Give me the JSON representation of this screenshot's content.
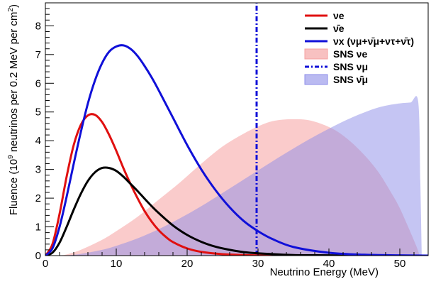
{
  "chart_data": {
    "type": "line",
    "title": "",
    "xlabel": "Neutrino Energy (MeV)",
    "ylabel": "Fluence (10^9 neutrinos per 0.2 MeV per cm^2)",
    "xlim": [
      0,
      54
    ],
    "ylim": [
      0,
      8.8
    ],
    "x_ticks": [
      0,
      10,
      20,
      30,
      40,
      50
    ],
    "y_ticks": [
      0,
      1,
      2,
      3,
      4,
      5,
      6,
      7,
      8
    ],
    "grid": false,
    "legend_position": "top-right",
    "series": [
      {
        "name": "νe",
        "style": "line",
        "color": "#e01010",
        "x": [
          0,
          1,
          2,
          3,
          4,
          5,
          6,
          7,
          8,
          9,
          10,
          11,
          12,
          13,
          14,
          15,
          16,
          17,
          18,
          20,
          22,
          25,
          28,
          30,
          35,
          40,
          45,
          50,
          54
        ],
        "y": [
          0,
          0.4,
          1.45,
          2.75,
          3.85,
          4.55,
          4.88,
          4.9,
          4.65,
          4.2,
          3.65,
          3.05,
          2.5,
          2.0,
          1.55,
          1.18,
          0.88,
          0.65,
          0.47,
          0.25,
          0.13,
          0.05,
          0.02,
          0.01,
          0.0,
          0.0,
          0.0,
          0.0,
          0.0
        ]
      },
      {
        "name": "ν̄e",
        "style": "line",
        "color": "#000000",
        "x": [
          0,
          1,
          2,
          3,
          4,
          5,
          6,
          7,
          8,
          9,
          10,
          11,
          12,
          13,
          14,
          15,
          16,
          18,
          20,
          22,
          24,
          26,
          28,
          30,
          35,
          40,
          45,
          50,
          54
        ],
        "y": [
          0,
          0.1,
          0.45,
          1.0,
          1.6,
          2.15,
          2.6,
          2.9,
          3.05,
          3.05,
          2.95,
          2.75,
          2.5,
          2.25,
          1.98,
          1.72,
          1.48,
          1.05,
          0.72,
          0.48,
          0.31,
          0.2,
          0.12,
          0.08,
          0.02,
          0.01,
          0.0,
          0.0,
          0.0
        ]
      },
      {
        "name": "νx",
        "label_suffix": "(νμ+ν̄μ+ντ+ν̄τ)",
        "style": "line",
        "color": "#1010d8",
        "x": [
          0,
          1,
          2,
          3,
          4,
          5,
          6,
          7,
          8,
          9,
          10,
          11,
          12,
          13,
          14,
          15,
          16,
          18,
          20,
          22,
          24,
          26,
          28,
          30,
          32,
          35,
          40,
          45,
          50,
          54
        ],
        "y": [
          0,
          0.25,
          1.0,
          2.05,
          3.2,
          4.3,
          5.3,
          6.1,
          6.7,
          7.1,
          7.28,
          7.32,
          7.2,
          6.95,
          6.6,
          6.2,
          5.75,
          4.8,
          3.85,
          3.0,
          2.28,
          1.68,
          1.2,
          0.85,
          0.58,
          0.3,
          0.1,
          0.03,
          0.01,
          0.0
        ]
      },
      {
        "name": "SNS νe",
        "style": "filled",
        "color": "#f5a0a0",
        "opacity": 0.55,
        "x": [
          0,
          2,
          3,
          5,
          8,
          10,
          13,
          16,
          19,
          22,
          25,
          28,
          31,
          33,
          35,
          37,
          39,
          41,
          43,
          45,
          47,
          49,
          50,
          51,
          52.3,
          52.8
        ],
        "y": [
          0,
          0.01,
          0.04,
          0.2,
          0.55,
          0.85,
          1.35,
          1.95,
          2.55,
          3.2,
          3.8,
          4.25,
          4.6,
          4.72,
          4.75,
          4.72,
          4.58,
          4.35,
          3.98,
          3.5,
          2.9,
          2.1,
          1.65,
          1.1,
          0.35,
          0.0
        ]
      },
      {
        "name": "SNS νμ",
        "style": "dash-dot-vertical",
        "color": "#1010d8",
        "x": [
          29.8,
          29.8
        ],
        "y": [
          0,
          8.8
        ]
      },
      {
        "name": "SNS ν̄μ",
        "style": "filled",
        "color": "#8c8ce8",
        "opacity": 0.5,
        "x": [
          0,
          2,
          3,
          5,
          8,
          10,
          13,
          16,
          19,
          22,
          25,
          28,
          31,
          34,
          37,
          40,
          43,
          46,
          48,
          50,
          51.5,
          52.6,
          52.9,
          53.1
        ],
        "y": [
          0,
          0.0,
          0.01,
          0.06,
          0.2,
          0.34,
          0.6,
          0.92,
          1.3,
          1.72,
          2.18,
          2.65,
          3.12,
          3.58,
          4.02,
          4.42,
          4.78,
          5.08,
          5.22,
          5.3,
          5.33,
          5.35,
          2.5,
          0.0
        ]
      }
    ]
  }
}
